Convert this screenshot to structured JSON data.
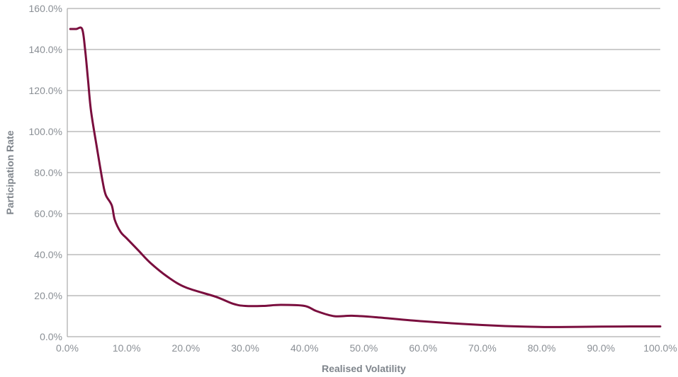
{
  "chart_data": {
    "type": "line",
    "title": "",
    "xlabel": "Realised Volatility",
    "ylabel": "Participation Rate",
    "xlim": [
      0,
      100
    ],
    "ylim": [
      0,
      160
    ],
    "grid": "horizontal",
    "x_ticks": [
      {
        "value": 0,
        "label": "0.0%"
      },
      {
        "value": 10,
        "label": "10.0%"
      },
      {
        "value": 20,
        "label": "20.0%"
      },
      {
        "value": 30,
        "label": "30.0%"
      },
      {
        "value": 40,
        "label": "40.0%"
      },
      {
        "value": 50,
        "label": "50.0%"
      },
      {
        "value": 60,
        "label": "60.0%"
      },
      {
        "value": 70,
        "label": "70.0%"
      },
      {
        "value": 80,
        "label": "80.0%"
      },
      {
        "value": 90,
        "label": "90.0%"
      },
      {
        "value": 100,
        "label": "100.0%"
      }
    ],
    "y_ticks": [
      {
        "value": 0,
        "label": "0.0%"
      },
      {
        "value": 20,
        "label": "20.0%"
      },
      {
        "value": 40,
        "label": "40.0%"
      },
      {
        "value": 60,
        "label": "60.0%"
      },
      {
        "value": 80,
        "label": "80.0%"
      },
      {
        "value": 100,
        "label": "100.0%"
      },
      {
        "value": 120,
        "label": "120.0%"
      },
      {
        "value": 140,
        "label": "140.0%"
      },
      {
        "value": 160,
        "label": "160.0%"
      }
    ],
    "series": [
      {
        "color": "#7a0e3e",
        "points": [
          {
            "x": 0.5,
            "y": 150
          },
          {
            "x": 1.5,
            "y": 150
          },
          {
            "x": 2.5,
            "y": 150
          },
          {
            "x": 3.0,
            "y": 140
          },
          {
            "x": 3.5,
            "y": 125
          },
          {
            "x": 4.0,
            "y": 110
          },
          {
            "x": 5.0,
            "y": 92
          },
          {
            "x": 6.0,
            "y": 75
          },
          {
            "x": 6.5,
            "y": 69
          },
          {
            "x": 7.5,
            "y": 64
          },
          {
            "x": 8.0,
            "y": 57
          },
          {
            "x": 9.0,
            "y": 51
          },
          {
            "x": 10.0,
            "y": 48
          },
          {
            "x": 12.0,
            "y": 42
          },
          {
            "x": 14.0,
            "y": 36
          },
          {
            "x": 17.0,
            "y": 29
          },
          {
            "x": 20.0,
            "y": 24
          },
          {
            "x": 25.0,
            "y": 19.5
          },
          {
            "x": 28.0,
            "y": 16
          },
          {
            "x": 30.0,
            "y": 15
          },
          {
            "x": 33.0,
            "y": 15
          },
          {
            "x": 36.0,
            "y": 15.5
          },
          {
            "x": 40.0,
            "y": 15
          },
          {
            "x": 42.0,
            "y": 12.5
          },
          {
            "x": 45.0,
            "y": 10
          },
          {
            "x": 48.0,
            "y": 10.2
          },
          {
            "x": 52.0,
            "y": 9.5
          },
          {
            "x": 60.0,
            "y": 7.5
          },
          {
            "x": 70.0,
            "y": 5.7
          },
          {
            "x": 77.0,
            "y": 4.9
          },
          {
            "x": 83.0,
            "y": 4.7
          },
          {
            "x": 90.0,
            "y": 4.9
          },
          {
            "x": 95.0,
            "y": 5.0
          },
          {
            "x": 100.0,
            "y": 5.0
          }
        ]
      }
    ]
  }
}
